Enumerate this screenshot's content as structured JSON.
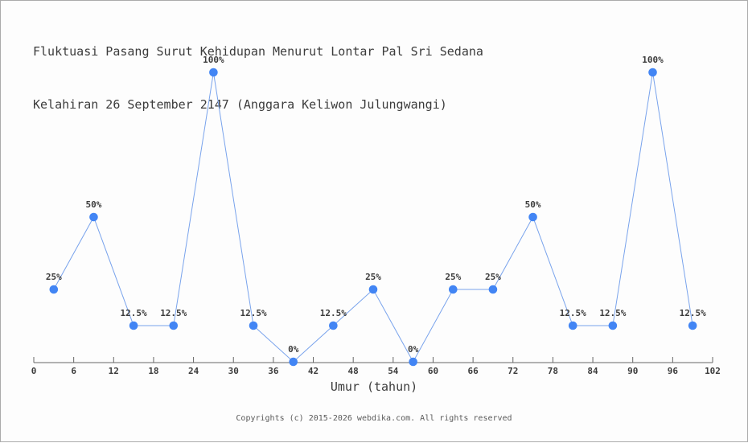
{
  "chart_data": {
    "type": "line",
    "title": "Fluktuasi Pasang Surut Kehidupan Menurut Lontar Pal Sri Sedana Kelahiran 26 September 2147 (Anggara Keliwon Julungwangi)",
    "title_lines": [
      "Fluktuasi Pasang Surut Kehidupan Menurut Lontar Pal Sri Sedana",
      "Kelahiran 26 September 2147 (Anggara Keliwon Julungwangi)"
    ],
    "xlabel": "Umur (tahun)",
    "ylabel": "",
    "x": [
      3,
      9,
      15,
      21,
      27,
      33,
      39,
      45,
      51,
      57,
      63,
      69,
      75,
      81,
      87,
      93,
      99
    ],
    "values": [
      25,
      50,
      12.5,
      12.5,
      100,
      12.5,
      0,
      12.5,
      25,
      0,
      25,
      25,
      50,
      12.5,
      12.5,
      100,
      12.5
    ],
    "point_labels": [
      "25%",
      "50%",
      "12.5%",
      "12.5%",
      "100%",
      "12.5%",
      "0%",
      "12.5%",
      "25%",
      "0%",
      "25%",
      "25%",
      "50%",
      "12.5%",
      "12.5%",
      "100%",
      "12.5%"
    ],
    "xticks": [
      0,
      6,
      12,
      18,
      24,
      30,
      36,
      42,
      48,
      54,
      60,
      66,
      72,
      78,
      84,
      90,
      96,
      102
    ],
    "xlim": [
      0,
      102
    ],
    "ylim": [
      0,
      100
    ],
    "grid": false,
    "legend": "none",
    "y_axis_visible": false,
    "colors": {
      "marker": "#4285f4",
      "line": "#79a3ec",
      "axis": "#666666",
      "text": "#3c3c3c"
    }
  },
  "footer": {
    "text": "Copyrights (c) 2015-2026 webdika.com. All rights reserved"
  }
}
